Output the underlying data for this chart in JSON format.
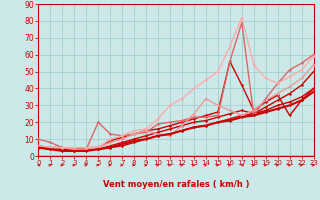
{
  "xlabel": "Vent moyen/en rafales ( km/h )",
  "bg_color": "#cce8e8",
  "grid_color": "#99cccc",
  "xlim": [
    0,
    23
  ],
  "ylim": [
    0,
    90
  ],
  "xticks": [
    0,
    1,
    2,
    3,
    4,
    5,
    6,
    7,
    8,
    9,
    10,
    11,
    12,
    13,
    14,
    15,
    16,
    17,
    18,
    19,
    20,
    21,
    22,
    23
  ],
  "yticks": [
    0,
    10,
    20,
    30,
    40,
    50,
    60,
    70,
    80,
    90
  ],
  "series": [
    {
      "x": [
        0,
        1,
        2,
        3,
        4,
        5,
        6,
        7,
        8,
        9,
        10,
        11,
        12,
        13,
        14,
        15,
        16,
        17,
        18,
        19,
        20,
        21,
        22,
        23
      ],
      "y": [
        5,
        4,
        4,
        3,
        4,
        4,
        5,
        6,
        8,
        10,
        12,
        13,
        15,
        17,
        18,
        20,
        22,
        24,
        25,
        27,
        30,
        32,
        35,
        40
      ],
      "color": "#cc0000",
      "lw": 1.0
    },
    {
      "x": [
        0,
        1,
        2,
        3,
        4,
        5,
        6,
        7,
        8,
        9,
        10,
        11,
        12,
        13,
        14,
        15,
        16,
        17,
        18,
        19,
        20,
        21,
        22,
        23
      ],
      "y": [
        5,
        4,
        4,
        3,
        4,
        4,
        6,
        8,
        10,
        12,
        14,
        16,
        18,
        20,
        21,
        23,
        25,
        27,
        25,
        29,
        33,
        37,
        42,
        50
      ],
      "color": "#cc0000",
      "lw": 1.0
    },
    {
      "x": [
        0,
        1,
        2,
        3,
        4,
        5,
        6,
        7,
        8,
        9,
        10,
        11,
        12,
        13,
        14,
        15,
        16,
        17,
        18,
        19,
        20,
        21,
        22,
        23
      ],
      "y": [
        6,
        5,
        5,
        4,
        5,
        5,
        9,
        11,
        13,
        15,
        16,
        18,
        20,
        22,
        24,
        26,
        56,
        42,
        27,
        32,
        36,
        24,
        33,
        40
      ],
      "color": "#cc0000",
      "lw": 1.0
    },
    {
      "x": [
        0,
        1,
        2,
        3,
        4,
        5,
        6,
        7,
        8,
        9,
        10,
        11,
        12,
        13,
        14,
        15,
        16,
        17,
        18,
        19,
        20,
        21,
        22,
        23
      ],
      "y": [
        10,
        8,
        5,
        4,
        4,
        20,
        13,
        12,
        13,
        14,
        19,
        20,
        21,
        23,
        23,
        24,
        56,
        79,
        24,
        34,
        43,
        51,
        55,
        60
      ],
      "color": "#dd6666",
      "lw": 1.0
    },
    {
      "x": [
        0,
        1,
        2,
        3,
        4,
        5,
        6,
        7,
        8,
        9,
        10,
        11,
        12,
        13,
        14,
        15,
        16,
        17,
        18,
        19,
        20,
        21,
        22,
        23
      ],
      "y": [
        6,
        5,
        5,
        4,
        4,
        5,
        8,
        10,
        13,
        15,
        13,
        12,
        18,
        25,
        34,
        30,
        27,
        24,
        27,
        33,
        37,
        41,
        46,
        54
      ],
      "color": "#ee9999",
      "lw": 1.0
    },
    {
      "x": [
        0,
        1,
        2,
        3,
        4,
        5,
        6,
        7,
        8,
        9,
        10,
        11,
        12,
        13,
        14,
        15,
        16,
        17,
        18,
        19,
        20,
        21,
        22,
        23
      ],
      "y": [
        6,
        5,
        5,
        5,
        5,
        5,
        10,
        12,
        15,
        16,
        22,
        30,
        34,
        40,
        45,
        50,
        65,
        82,
        54,
        46,
        43,
        47,
        51,
        59
      ],
      "color": "#ffaaaa",
      "lw": 1.0
    },
    {
      "x": [
        0,
        1,
        2,
        3,
        4,
        5,
        6,
        7,
        8,
        9,
        10,
        11,
        12,
        13,
        14,
        15,
        16,
        17,
        18,
        19,
        20,
        21,
        22,
        23
      ],
      "y": [
        5,
        4,
        3,
        3,
        3,
        4,
        5,
        7,
        9,
        10,
        12,
        13,
        15,
        17,
        18,
        20,
        21,
        23,
        24,
        26,
        28,
        30,
        33,
        38
      ],
      "color": "#cc0000",
      "lw": 1.5
    }
  ],
  "wind_arrows": [
    [
      -1,
      1,
      1,
      1,
      1,
      1,
      1,
      1,
      1,
      1,
      1,
      1,
      1,
      1,
      1,
      1,
      1,
      -1,
      1,
      1,
      1,
      1,
      1,
      1
    ]
  ]
}
